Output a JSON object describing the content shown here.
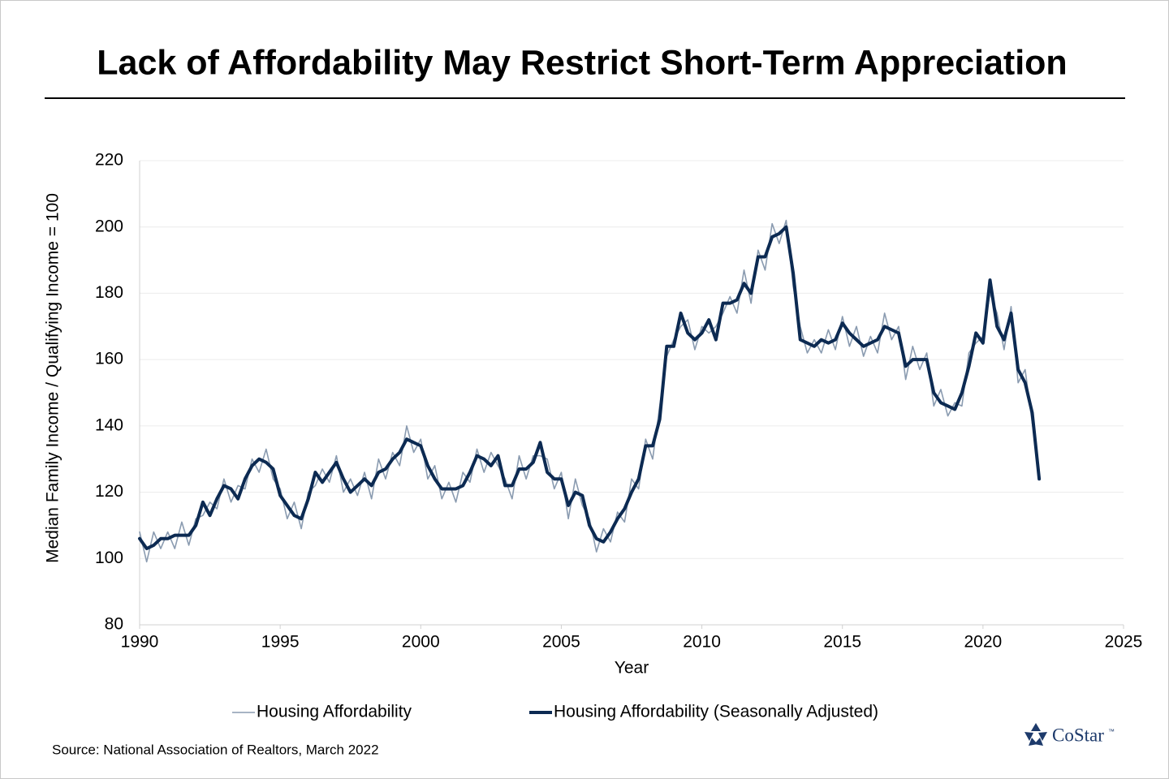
{
  "chart_data": {
    "type": "line",
    "title": "Lack of Affordability May Restrict Short-Term Appreciation",
    "x_label": "Year",
    "y_label": "Median Family Income / Qualifying Income = 100",
    "source": "Source: National Association of Realtors, March 2022",
    "logo": "CoStar",
    "logo_mark": "™",
    "xlim": [
      1990,
      2025
    ],
    "xticks": [
      1990,
      1995,
      2000,
      2005,
      2010,
      2015,
      2020,
      2025
    ],
    "ylim": [
      80,
      220
    ],
    "yticks": [
      80,
      100,
      120,
      140,
      160,
      180,
      200,
      220
    ],
    "grid": true,
    "legend": "bottom",
    "x": [
      1990,
      1990.25,
      1990.5,
      1990.75,
      1991,
      1991.25,
      1991.5,
      1991.75,
      1992,
      1992.25,
      1992.5,
      1992.75,
      1993,
      1993.25,
      1993.5,
      1993.75,
      1994,
      1994.25,
      1994.5,
      1994.75,
      1995,
      1995.25,
      1995.5,
      1995.75,
      1996,
      1996.25,
      1996.5,
      1996.75,
      1997,
      1997.25,
      1997.5,
      1997.75,
      1998,
      1998.25,
      1998.5,
      1998.75,
      1999,
      1999.25,
      1999.5,
      1999.75,
      2000,
      2000.25,
      2000.5,
      2000.75,
      2001,
      2001.25,
      2001.5,
      2001.75,
      2002,
      2002.25,
      2002.5,
      2002.75,
      2003,
      2003.25,
      2003.5,
      2003.75,
      2004,
      2004.25,
      2004.5,
      2004.75,
      2005,
      2005.25,
      2005.5,
      2005.75,
      2006,
      2006.25,
      2006.5,
      2006.75,
      2007,
      2007.25,
      2007.5,
      2007.75,
      2008,
      2008.25,
      2008.5,
      2008.75,
      2009,
      2009.25,
      2009.5,
      2009.75,
      2010,
      2010.25,
      2010.5,
      2010.75,
      2011,
      2011.25,
      2011.5,
      2011.75,
      2012,
      2012.25,
      2012.5,
      2012.75,
      2013,
      2013.25,
      2013.5,
      2013.75,
      2014,
      2014.25,
      2014.5,
      2014.75,
      2015,
      2015.25,
      2015.5,
      2015.75,
      2016,
      2016.25,
      2016.5,
      2016.75,
      2017,
      2017.25,
      2017.5,
      2017.75,
      2018,
      2018.25,
      2018.5,
      2018.75,
      2019,
      2019.25,
      2019.5,
      2019.75,
      2020,
      2020.25,
      2020.5,
      2020.75,
      2021,
      2021.25,
      2021.5,
      2021.75,
      2022
    ],
    "series": [
      {
        "name": "Housing Affordability",
        "color": "#8a9bb0",
        "width": 1.6,
        "values": [
          108,
          99,
          108,
          103,
          108,
          103,
          111,
          104,
          112,
          113,
          117,
          115,
          124,
          117,
          122,
          121,
          130,
          126,
          133,
          124,
          121,
          112,
          117,
          109,
          120,
          122,
          127,
          123,
          131,
          120,
          124,
          119,
          126,
          118,
          130,
          124,
          132,
          128,
          140,
          132,
          136,
          124,
          128,
          118,
          123,
          117,
          126,
          123,
          133,
          126,
          132,
          128,
          124,
          118,
          131,
          124,
          131,
          131,
          130,
          121,
          126,
          112,
          124,
          116,
          112,
          102,
          109,
          105,
          114,
          111,
          124,
          121,
          136,
          130,
          146,
          161,
          166,
          170,
          172,
          163,
          170,
          168,
          170,
          174,
          179,
          174,
          187,
          177,
          193,
          187,
          201,
          195,
          202,
          182,
          170,
          162,
          166,
          162,
          169,
          163,
          173,
          164,
          170,
          161,
          167,
          162,
          174,
          166,
          170,
          154,
          164,
          157,
          162,
          146,
          151,
          143,
          147,
          146,
          162,
          165,
          167,
          180,
          174,
          163,
          176,
          153,
          157,
          141,
          126
        ]
      },
      {
        "name": "Housing Affordability (Seasonally Adjusted)",
        "color": "#0c2a52",
        "width": 4,
        "values": [
          106,
          103,
          104,
          106,
          106,
          107,
          107,
          107,
          110,
          117,
          113,
          118,
          122,
          121,
          118,
          124,
          128,
          130,
          129,
          127,
          119,
          116,
          113,
          112,
          118,
          126,
          123,
          126,
          129,
          124,
          120,
          122,
          124,
          122,
          126,
          127,
          130,
          132,
          136,
          135,
          134,
          128,
          124,
          121,
          121,
          121,
          122,
          126,
          131,
          130,
          128,
          131,
          122,
          122,
          127,
          127,
          129,
          135,
          126,
          124,
          124,
          116,
          120,
          119,
          110,
          106,
          105,
          108,
          112,
          115,
          120,
          124,
          134,
          134,
          142,
          164,
          164,
          174,
          168,
          166,
          168,
          172,
          166,
          177,
          177,
          178,
          183,
          180,
          191,
          191,
          197,
          198,
          200,
          186,
          166,
          165,
          164,
          166,
          165,
          166,
          171,
          168,
          166,
          164,
          165,
          166,
          170,
          169,
          168,
          158,
          160,
          160,
          160,
          150,
          147,
          146,
          145,
          150,
          158,
          168,
          165,
          184,
          170,
          166,
          174,
          157,
          153,
          144,
          124
        ]
      }
    ]
  }
}
